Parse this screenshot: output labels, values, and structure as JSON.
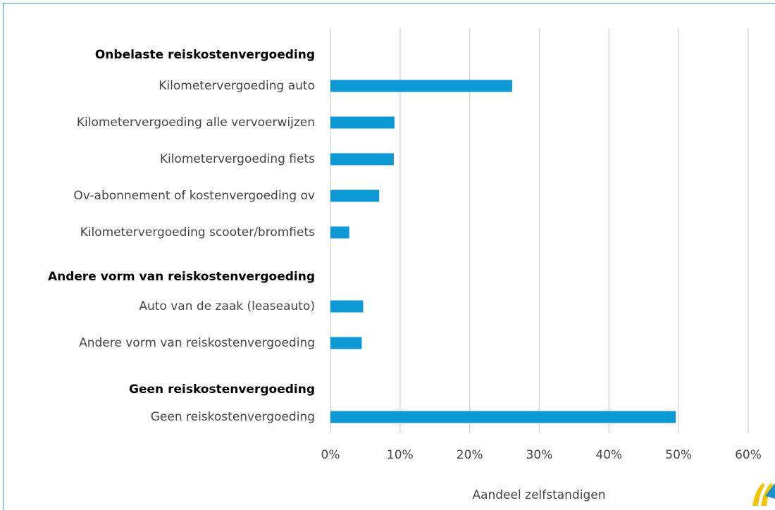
{
  "chart_data": {
    "type": "bar",
    "orientation": "horizontal",
    "groups": [
      {
        "name": "Onbelaste reiskostenvergoeding",
        "categories": [
          "Kilometervergoeding auto",
          "Kilometervergoeding alle vervoerwijzen",
          "Kilometervergoeding fiets",
          "Ov-abonnement of kostenvergoeding ov",
          "Kilometervergoeding scooter/bromfiets"
        ],
        "values": [
          26.1,
          9.2,
          9.1,
          7.0,
          2.7
        ]
      },
      {
        "name": "Andere vorm van reiskostenvergoeding",
        "categories": [
          "Auto van de zaak (leaseauto)",
          "Andere vorm van reiskostenvergoeding"
        ],
        "values": [
          4.7,
          4.5
        ]
      },
      {
        "name": "Geen reiskostenvergoeding",
        "categories": [
          "Geen reiskostenvergoeding"
        ],
        "values": [
          49.6
        ]
      }
    ],
    "color": "#0b9ad6",
    "x_label": "Aandeel zelfstandigen",
    "xlim": [
      0,
      60
    ],
    "xticks": [
      {
        "value": 0,
        "label": "0%"
      },
      {
        "value": 10,
        "label": "10%"
      },
      {
        "value": 20,
        "label": "20%"
      },
      {
        "value": 30,
        "label": "30%"
      },
      {
        "value": 40,
        "label": "40%"
      },
      {
        "value": 50,
        "label": "50%"
      },
      {
        "value": 60,
        "label": "60%"
      }
    ],
    "grid": true
  }
}
